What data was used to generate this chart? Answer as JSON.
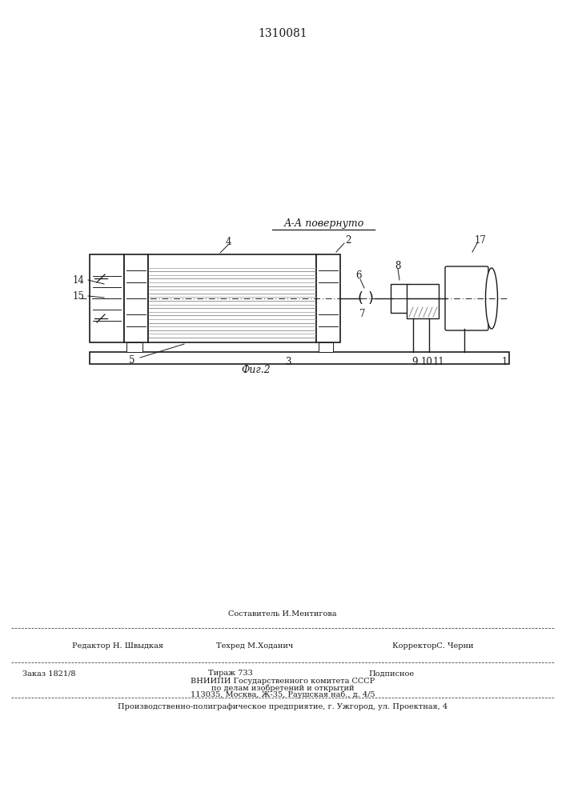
{
  "patent_number": "1310081",
  "section_label": "А-А повернуто",
  "fig_label": "Фиг.2",
  "bg_color": "#ffffff",
  "line_color": "#1a1a1a",
  "footer": {
    "line1_above": "Составитель И.Ментигова",
    "line1_left": "Редактор Н. Швыдкая",
    "line1_center": "Техред М.Ходанич",
    "line1_right": "КорректорС. Черни",
    "line2_left": "Заказ 1821/8",
    "line2_center": "Тираж 733",
    "line2_right": "Подписное",
    "line3": "ВНИИПИ Государственного комитета СССР",
    "line4": "по делам изобретений и открытий",
    "line5": "113035, Москва, Ж-35, Раушская наб., д. 4/5",
    "line6": "Производственно-полиграфическое предприятие, г. Ужгород, ул. Проектная, 4"
  }
}
